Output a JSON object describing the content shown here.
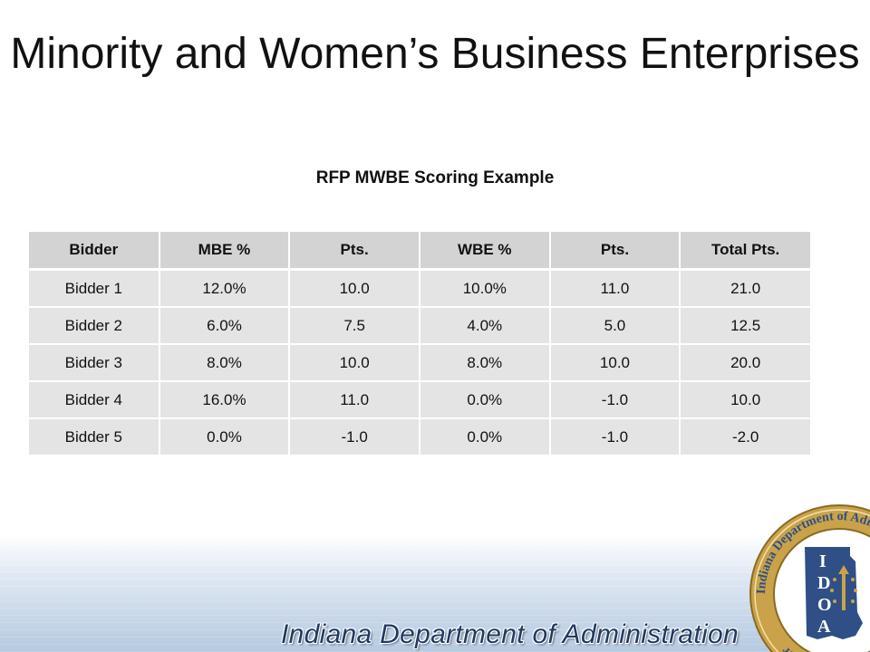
{
  "slide": {
    "title": "Minority and Women’s Business Enterprises",
    "subtitle": "RFP MWBE Scoring Example"
  },
  "table": {
    "headers": [
      "Bidder",
      "MBE %",
      "Pts.",
      "WBE %",
      "Pts.",
      "Total Pts."
    ],
    "rows": [
      [
        "Bidder 1",
        "12.0%",
        "10.0",
        "10.0%",
        "11.0",
        "21.0"
      ],
      [
        "Bidder 2",
        "6.0%",
        "7.5",
        "4.0%",
        "5.0",
        "12.5"
      ],
      [
        "Bidder 3",
        "8.0%",
        "10.0",
        "8.0%",
        "10.0",
        "20.0"
      ],
      [
        "Bidder 4",
        "16.0%",
        "11.0",
        "0.0%",
        "-1.0",
        "10.0"
      ],
      [
        "Bidder 5",
        "0.0%",
        "-1.0",
        "0.0%",
        "-1.0",
        "-2.0"
      ]
    ]
  },
  "footer": {
    "agency": "Indiana Department of Administration"
  },
  "seal": {
    "ring_text": "Indiana Department of Administration · Mitchell E. Daniels, Jr. · Governor",
    "letters": "IDOA"
  },
  "colors": {
    "header_cell": "#d3d3d3",
    "body_cell": "#e4e4e4",
    "footer_text": "#1f3a63",
    "seal_gold": "#c9a24a",
    "seal_blue": "#2f4f86"
  }
}
